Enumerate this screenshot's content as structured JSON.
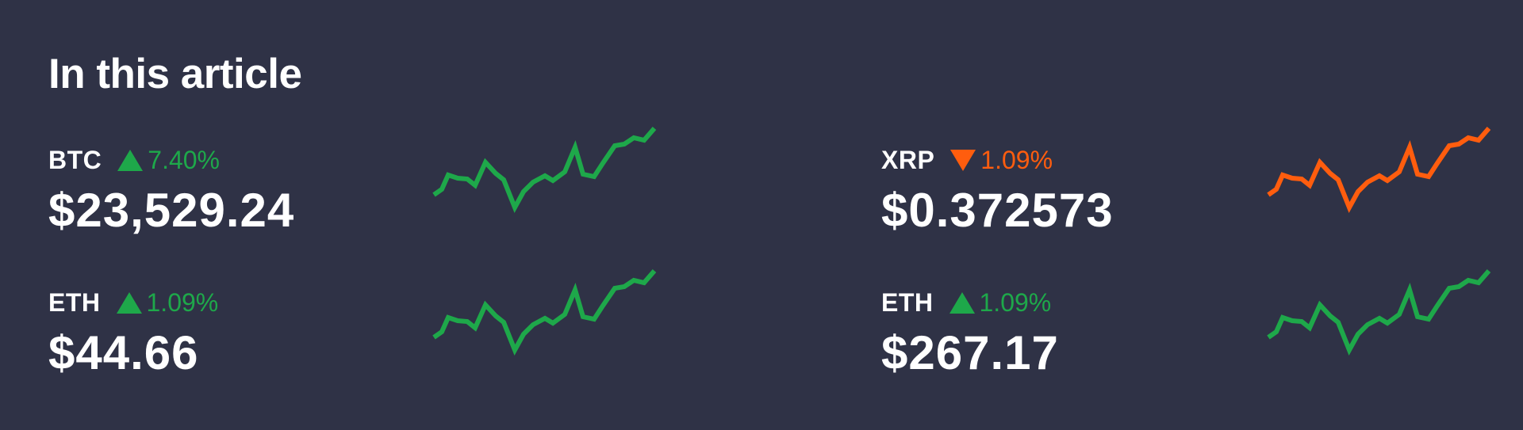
{
  "article": {
    "title": "In this article"
  },
  "tickers": [
    {
      "symbol": "BTC",
      "change": "7.40%",
      "direction": "up",
      "price": "$23,529.24",
      "color": "#1ea84a",
      "icon": "triangle-up-icon"
    },
    {
      "symbol": "XRP",
      "change": "1.09%",
      "direction": "down",
      "price": "$0.372573",
      "color": "#ff5d0e",
      "icon": "triangle-down-icon"
    },
    {
      "symbol": "ETH",
      "change": "1.09%",
      "direction": "up",
      "price": "$44.66",
      "color": "#1ea84a",
      "icon": "triangle-up-icon"
    },
    {
      "symbol": "ETH",
      "change": "1.09%",
      "direction": "up",
      "price": "$267.17",
      "color": "#1ea84a",
      "icon": "triangle-up-icon"
    }
  ],
  "colors": {
    "background": "#2f3246",
    "text": "#ffffff",
    "up": "#1ea84a",
    "down": "#ff5d0e"
  }
}
